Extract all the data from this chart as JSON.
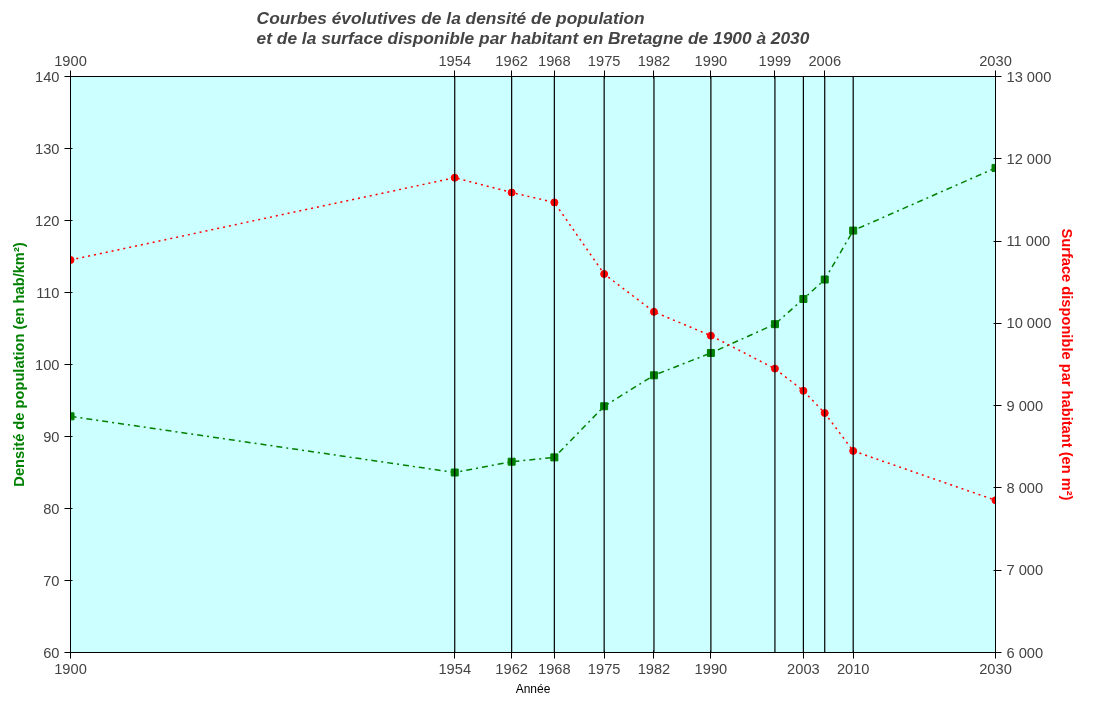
{
  "chart_data": {
    "type": "line",
    "title": "Courbes évolutives de la densité de population\net de la surface disponible par habitant en Bretagne de 1900 à 2030",
    "xlabel": "Année",
    "ylabel": "Densité de population (en hab/km²)",
    "y2label": "Surface disponible par habitant (en m²)",
    "x": [
      1900,
      1954,
      1962,
      1968,
      1975,
      1982,
      1990,
      1999,
      2003,
      2006,
      2010,
      2030
    ],
    "series": [
      {
        "color": "#008000",
        "marker": "square",
        "line_style": "dashed",
        "values": [
          92.8,
          85,
          86.5,
          87.1,
          94.2,
          98.5,
          101.6,
          105.6,
          109.1,
          111.8,
          118.6,
          127.3
        ]
      },
      {
        "color": "#ff0000",
        "marker": "circle",
        "line_style": "dotted",
        "axis": "y2",
        "values": [
          10770,
          11770,
          11590,
          11470,
          10600,
          10140,
          9850,
          9450,
          9180,
          8910,
          8450,
          7850
        ]
      }
    ],
    "xlim": [
      1900,
      2030
    ],
    "xticks": [
      1900,
      1954,
      1962,
      1968,
      1975,
      1982,
      1990,
      2003,
      2010,
      2030
    ],
    "x2lim": [
      1900,
      2030
    ],
    "x2ticks": [
      1900,
      1954,
      1962,
      1968,
      1975,
      1982,
      1990,
      1999,
      2006,
      2030
    ],
    "ylim": [
      60,
      140
    ],
    "yticks": [
      60,
      70,
      80,
      90,
      100,
      110,
      120,
      130,
      140
    ],
    "y2lim": [
      6000,
      13000
    ],
    "y2ticks": [
      {
        "value": 6000,
        "label": "6 000"
      },
      {
        "value": 7000,
        "label": "7 000"
      },
      {
        "value": 8000,
        "label": "8 000"
      },
      {
        "value": 9000,
        "label": "9 000"
      },
      {
        "value": 10000,
        "label": "10 000"
      },
      {
        "value": 11000,
        "label": "11 000"
      },
      {
        "value": 12000,
        "label": "12 000"
      },
      {
        "value": 13000,
        "label": "13 000"
      }
    ],
    "ref_lines": [
      {
        "axis": "x",
        "value": 1954,
        "color": "#000000"
      },
      {
        "axis": "x",
        "value": 1962,
        "color": "#000000"
      },
      {
        "axis": "x",
        "value": 1968,
        "color": "#000000"
      },
      {
        "axis": "x",
        "value": 1975,
        "color": "#000000"
      },
      {
        "axis": "x",
        "value": 1982,
        "color": "#000000"
      },
      {
        "axis": "x",
        "value": 1990,
        "color": "#000000"
      },
      {
        "axis": "x",
        "value": 1999,
        "color": "#000000"
      },
      {
        "axis": "x",
        "value": 2003,
        "color": "#000000"
      },
      {
        "axis": "x",
        "value": 2006,
        "color": "#000000"
      },
      {
        "axis": "x",
        "value": 2010,
        "color": "#000000"
      }
    ],
    "grid": false
  }
}
